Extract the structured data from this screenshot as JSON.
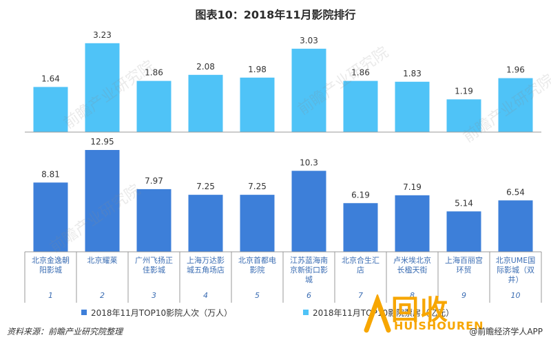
{
  "title": "图表10：2018年11月影院排行",
  "source": "资料来源：前瞻产业研究院整理",
  "app_text": "@前瞻经济学人APP",
  "logo": {
    "top": "回收",
    "bottom": "HUISHOUREN"
  },
  "watermark": "前瞻产业研究院",
  "colors": {
    "series_top": "#4fc3f7",
    "series_bottom": "#3d7fd9",
    "axis": "#999999",
    "label": "#333333",
    "cinema_label": "#3b6db3",
    "logo": "#f7a600"
  },
  "chart_data": [
    {
      "type": "bar",
      "categories": [
        "北京金逸朝阳影城",
        "北京耀莱",
        "广州飞扬正佳影城",
        "上海万达影城五角场店",
        "北京首都电影院",
        "江苏蓝海南京新街口影城",
        "北京合生汇店",
        "卢米埃北京长楹天街",
        "上海百丽宫环贸",
        "北京UME国际影城（双井）"
      ],
      "series": [
        {
          "name": "2018年11月TOP10影院人次（万人）",
          "values": [
            8.81,
            12.95,
            7.97,
            7.25,
            7.25,
            10.3,
            6.19,
            7.19,
            5.14,
            6.54
          ]
        }
      ],
      "data_labels": [
        "8.81",
        "12.95",
        "7.97",
        "7.25",
        "7.25",
        "10.3",
        "6.19",
        "7.19",
        "5.14",
        "6.54"
      ],
      "ylim": [
        0,
        14
      ]
    },
    {
      "type": "bar",
      "categories": [
        "北京金逸朝阳影城",
        "北京耀莱",
        "广州飞扬正佳影城",
        "上海万达影城五角场店",
        "北京首都电影院",
        "江苏蓝海南京新街口影城",
        "北京合生汇店",
        "卢米埃北京长楹天街",
        "上海百丽宫环贸",
        "北京UME国际影城（双井）"
      ],
      "series": [
        {
          "name": "2018年11月TOP10影院票房（亿元）",
          "values": [
            1.64,
            3.23,
            1.86,
            2.08,
            1.98,
            3.03,
            1.86,
            1.83,
            1.19,
            1.96
          ]
        }
      ],
      "data_labels": [
        "1.64",
        "3.23",
        "1.86",
        "2.08",
        "1.98",
        "3.03",
        "1.86",
        "1.83",
        "1.19",
        "1.96"
      ],
      "ylim": [
        0,
        3.5
      ]
    }
  ],
  "category_labels": [
    [
      "北京金逸朝",
      "阳影城"
    ],
    [
      "北京耀莱"
    ],
    [
      "广州飞扬正",
      "佳影城"
    ],
    [
      "上海万达影",
      "城五角场店"
    ],
    [
      "北京首都电",
      "影院"
    ],
    [
      "江苏蓝海南",
      "京新街口影",
      "城"
    ],
    [
      "北京合生汇",
      "店"
    ],
    [
      "卢米埃北京",
      "长楹天街"
    ],
    [
      "上海百丽宫",
      "环贸"
    ],
    [
      "北京UME国",
      "际影城（双",
      "井）"
    ]
  ],
  "ranks": [
    "1",
    "2",
    "3",
    "4",
    "5",
    "6",
    "7",
    "8",
    "9",
    "10"
  ],
  "legend": [
    {
      "label": "2018年11月TOP10影院人次（万人）",
      "color": "#3d7fd9"
    },
    {
      "label": "2018年11月TOP10影院票房（亿元）",
      "color": "#4fc3f7"
    }
  ]
}
